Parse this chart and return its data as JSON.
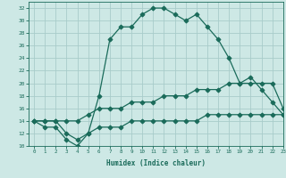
{
  "xlabel": "Humidex (Indice chaleur)",
  "x": [
    0,
    1,
    2,
    3,
    4,
    5,
    6,
    7,
    8,
    9,
    10,
    11,
    12,
    13,
    14,
    15,
    16,
    17,
    18,
    19,
    20,
    21,
    22,
    23
  ],
  "line1": [
    14,
    13,
    13,
    11,
    10,
    12,
    18,
    27,
    29,
    29,
    31,
    32,
    32,
    31,
    30,
    31,
    29,
    27,
    24,
    20,
    21,
    19,
    17,
    15
  ],
  "line2": [
    14,
    14,
    14,
    14,
    14,
    15,
    16,
    16,
    16,
    17,
    17,
    17,
    18,
    18,
    18,
    19,
    19,
    19,
    20,
    20,
    20,
    20,
    20,
    16
  ],
  "line3": [
    14,
    14,
    14,
    12,
    11,
    12,
    13,
    13,
    13,
    14,
    14,
    14,
    14,
    14,
    14,
    14,
    15,
    15,
    15,
    15,
    15,
    15,
    15,
    15
  ],
  "bg_color": "#cde8e5",
  "grid_color": "#a8ccca",
  "line_color": "#1a6b5a",
  "ylim": [
    10,
    33
  ],
  "xlim": [
    -0.5,
    23
  ],
  "yticks": [
    10,
    12,
    14,
    16,
    18,
    20,
    22,
    24,
    26,
    28,
    30,
    32
  ],
  "xticks": [
    0,
    1,
    2,
    3,
    4,
    5,
    6,
    7,
    8,
    9,
    10,
    11,
    12,
    13,
    14,
    15,
    16,
    17,
    18,
    19,
    20,
    21,
    22,
    23
  ]
}
